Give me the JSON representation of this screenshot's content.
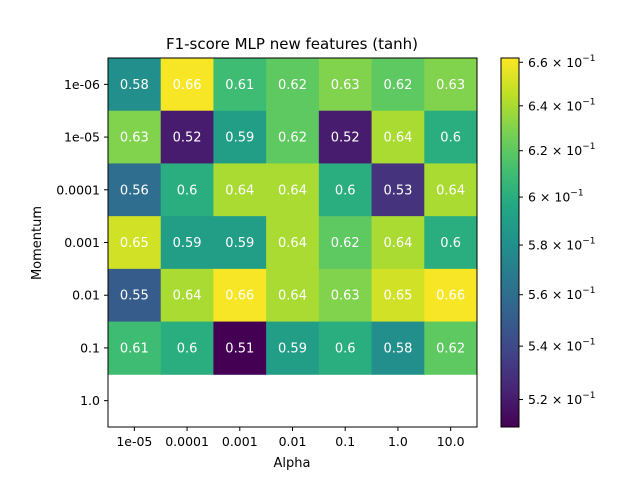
{
  "chart_data": {
    "type": "heatmap",
    "title": "F1-score MLP new features (tanh)",
    "xlabel": "Alpha",
    "ylabel": "Momentum",
    "x_categories": [
      "1e-05",
      "0.0001",
      "0.001",
      "0.01",
      "0.1",
      "1.0",
      "10.0"
    ],
    "y_categories": [
      "1e-06",
      "1e-05",
      "0.0001",
      "0.001",
      "0.01",
      "0.1",
      "1.0"
    ],
    "values": [
      [
        0.58,
        0.66,
        0.61,
        0.62,
        0.63,
        0.62,
        0.63
      ],
      [
        0.63,
        0.52,
        0.59,
        0.62,
        0.52,
        0.64,
        0.6
      ],
      [
        0.56,
        0.6,
        0.64,
        0.64,
        0.6,
        0.53,
        0.64
      ],
      [
        0.65,
        0.59,
        0.59,
        0.64,
        0.62,
        0.64,
        0.6
      ],
      [
        0.55,
        0.64,
        0.66,
        0.64,
        0.63,
        0.65,
        0.66
      ],
      [
        0.61,
        0.6,
        0.51,
        0.59,
        0.6,
        0.58,
        0.62
      ],
      [
        null,
        null,
        null,
        null,
        null,
        null,
        null
      ]
    ],
    "colormap": "viridis",
    "color_scale": "log",
    "color_range": [
      0.51,
      0.662
    ],
    "colorbar_ticks": [
      {
        "value": 0.52,
        "mantissa": "5.2"
      },
      {
        "value": 0.54,
        "mantissa": "5.4"
      },
      {
        "value": 0.56,
        "mantissa": "5.6"
      },
      {
        "value": 0.58,
        "mantissa": "5.8"
      },
      {
        "value": 0.6,
        "mantissa": "6"
      },
      {
        "value": 0.62,
        "mantissa": "6.2"
      },
      {
        "value": 0.64,
        "mantissa": "6.4"
      },
      {
        "value": 0.66,
        "mantissa": "6.6"
      }
    ],
    "colorbar_multiplier": "10",
    "colorbar_exponent": "−1"
  }
}
